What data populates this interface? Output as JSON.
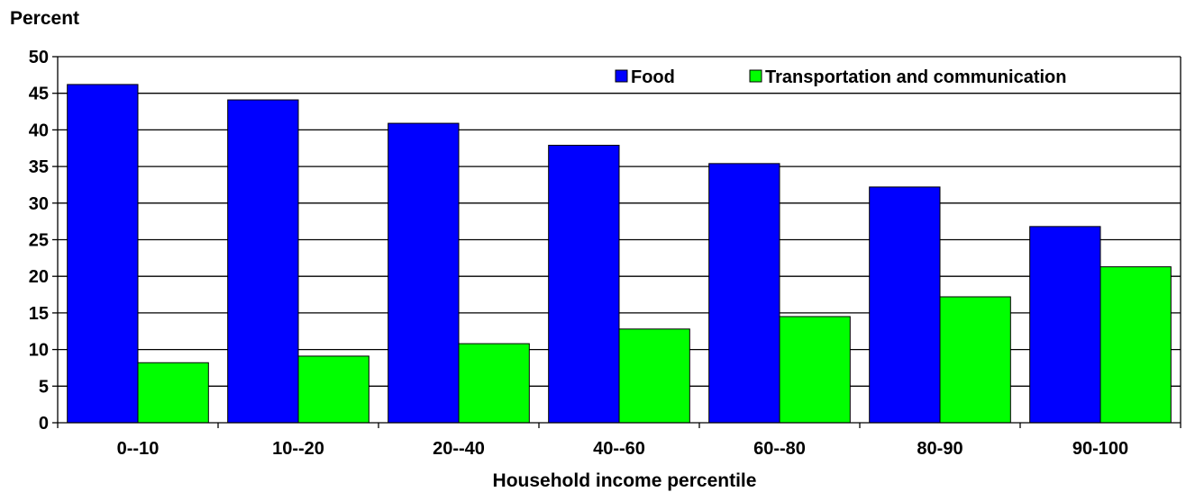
{
  "colors": {
    "food": "#0000ff",
    "transport": "#00ff00",
    "background": "#ffffff",
    "gridline": "#000000"
  },
  "chart_data": {
    "type": "bar",
    "title": "",
    "ylabel": "Percent",
    "xlabel": "Household income percentile",
    "categories": [
      "0--10",
      "10--20",
      "20--40",
      "40--60",
      "60--80",
      "80-90",
      "90-100"
    ],
    "series": [
      {
        "name": "Food",
        "values": [
          46.2,
          44.1,
          40.9,
          37.9,
          35.4,
          32.2,
          26.8
        ]
      },
      {
        "name": "Transportation and communication",
        "values": [
          8.2,
          9.1,
          10.8,
          12.8,
          14.5,
          17.2,
          21.3
        ]
      }
    ],
    "ylim": [
      0,
      50
    ],
    "yticks": [
      0,
      5,
      10,
      15,
      20,
      25,
      30,
      35,
      40,
      45,
      50
    ],
    "grid": true,
    "legend_position": "top-right"
  }
}
